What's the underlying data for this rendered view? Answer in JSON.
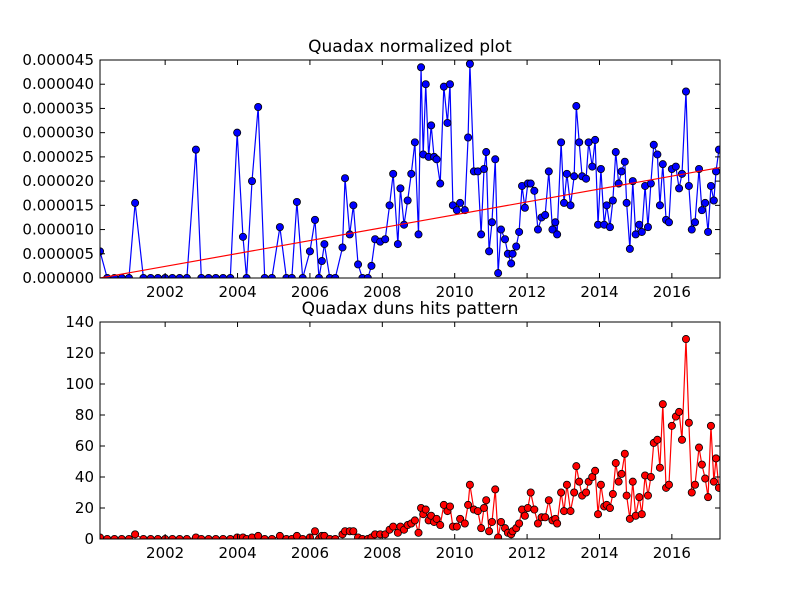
{
  "chart_data": [
    {
      "type": "line",
      "title": "Quadax normalized plot",
      "x": [
        2000.2,
        2000.4,
        2000.6,
        2000.8,
        2001.0,
        2001.17,
        2001.4,
        2001.6,
        2001.8,
        2002.0,
        2002.2,
        2002.4,
        2002.6,
        2002.85,
        2003.0,
        2003.2,
        2003.4,
        2003.6,
        2003.8,
        2003.99,
        2004.15,
        2004.25,
        2004.4,
        2004.57,
        2004.75,
        2004.95,
        2005.17,
        2005.35,
        2005.5,
        2005.64,
        2005.8,
        2006.0,
        2006.14,
        2006.25,
        2006.33,
        2006.4,
        2006.55,
        2006.7,
        2006.9,
        2006.97,
        2007.1,
        2007.2,
        2007.33,
        2007.45,
        2007.6,
        2007.7,
        2007.8,
        2007.94,
        2008.08,
        2008.2,
        2008.3,
        2008.43,
        2008.5,
        2008.6,
        2008.7,
        2008.8,
        2008.9,
        2009.0,
        2009.07,
        2009.13,
        2009.2,
        2009.28,
        2009.35,
        2009.43,
        2009.5,
        2009.6,
        2009.7,
        2009.8,
        2009.87,
        2009.95,
        2010.06,
        2010.15,
        2010.28,
        2010.37,
        2010.42,
        2010.53,
        2010.64,
        2010.73,
        2010.81,
        2010.87,
        2010.95,
        2011.03,
        2011.12,
        2011.2,
        2011.28,
        2011.39,
        2011.47,
        2011.56,
        2011.6,
        2011.7,
        2011.78,
        2011.86,
        2011.94,
        2012.02,
        2012.1,
        2012.2,
        2012.3,
        2012.4,
        2012.5,
        2012.6,
        2012.7,
        2012.78,
        2012.83,
        2012.94,
        2013.02,
        2013.1,
        2013.2,
        2013.3,
        2013.36,
        2013.44,
        2013.52,
        2013.63,
        2013.7,
        2013.8,
        2013.88,
        2013.96,
        2014.04,
        2014.13,
        2014.2,
        2014.29,
        2014.37,
        2014.45,
        2014.53,
        2014.61,
        2014.7,
        2014.75,
        2014.84,
        2014.92,
        2015.0,
        2015.1,
        2015.17,
        2015.26,
        2015.34,
        2015.42,
        2015.5,
        2015.6,
        2015.67,
        2015.75,
        2015.84,
        2015.92,
        2016.0,
        2016.11,
        2016.2,
        2016.28,
        2016.39,
        2016.47,
        2016.55,
        2016.64,
        2016.75,
        2016.83,
        2016.92,
        2017.0,
        2017.08,
        2017.16,
        2017.22,
        2017.3
      ],
      "series": [
        {
          "color": "#0000ff",
          "marker_edge": "#000000",
          "values": [
            5.5e-06,
            0,
            0,
            0,
            0,
            1.55e-05,
            0,
            0,
            0,
            0,
            0,
            0,
            0,
            2.65e-05,
            0,
            0,
            0,
            0,
            0,
            3e-05,
            8.5e-06,
            0,
            2e-05,
            3.53e-05,
            0,
            0,
            1.05e-05,
            0,
            0,
            1.57e-05,
            0,
            5.5e-06,
            1.2e-05,
            0,
            3.5e-06,
            7e-06,
            0,
            0,
            6.3e-06,
            2.06e-05,
            9e-06,
            1.5e-05,
            2.8e-06,
            0,
            0,
            2.5e-06,
            8e-06,
            7.5e-06,
            8e-06,
            1.5e-05,
            2.15e-05,
            7e-06,
            1.85e-05,
            1.1e-05,
            1.6e-05,
            2.15e-05,
            2.8e-05,
            9e-06,
            4.35e-05,
            2.55e-05,
            4e-05,
            2.5e-05,
            3.15e-05,
            2.5e-05,
            2.45e-05,
            1.95e-05,
            3.95e-05,
            3.2e-05,
            4e-05,
            1.5e-05,
            1.4e-05,
            1.55e-05,
            1.4e-05,
            2.9e-05,
            4.42e-05,
            2.2e-05,
            2.2e-05,
            9e-06,
            2.25e-05,
            2.6e-05,
            5.5e-06,
            1.15e-05,
            2.45e-05,
            1e-06,
            1e-05,
            8e-06,
            5e-06,
            3e-06,
            5e-06,
            6.5e-06,
            9.5e-06,
            1.9e-05,
            1.45e-05,
            1.95e-05,
            1.95e-05,
            1.8e-05,
            1e-05,
            1.25e-05,
            1.3e-05,
            2.2e-05,
            1e-05,
            1.15e-05,
            9e-06,
            2.8e-05,
            1.55e-05,
            2.15e-05,
            1.5e-05,
            2.1e-05,
            3.55e-05,
            2.8e-05,
            2.1e-05,
            2.05e-05,
            2.8e-05,
            2.3e-05,
            2.85e-05,
            1.1e-05,
            2.25e-05,
            1.1e-05,
            1.5e-05,
            1.05e-05,
            1.6e-05,
            2.6e-05,
            1.95e-05,
            2.2e-05,
            2.4e-05,
            1.55e-05,
            6e-06,
            2e-05,
            9e-06,
            1.1e-05,
            9.5e-06,
            1.9e-05,
            1.05e-05,
            1.95e-05,
            2.75e-05,
            2.55e-05,
            1.5e-05,
            2.35e-05,
            1.2e-05,
            1.15e-05,
            2.25e-05,
            2.3e-05,
            1.85e-05,
            2.15e-05,
            3.85e-05,
            1.9e-05,
            1e-05,
            1.15e-05,
            2.25e-05,
            1.4e-05,
            1.55e-05,
            9.5e-06,
            1.9e-05,
            1.6e-05,
            2.2e-05,
            2.65e-05
          ]
        }
      ],
      "trend": {
        "color": "#ff0000",
        "x": [
          2000.2,
          2017.33
        ],
        "values": [
          0,
          2.28e-05
        ]
      },
      "xlim": [
        2000.2,
        2017.33
      ],
      "xticks": [
        2002,
        2004,
        2006,
        2008,
        2010,
        2012,
        2014,
        2016
      ],
      "ylim": [
        0,
        4.5e-05
      ],
      "yticks": [
        {
          "value": 0,
          "label": "0.000000"
        },
        {
          "value": 5e-06,
          "label": "0.000005"
        },
        {
          "value": 1e-05,
          "label": "0.000010"
        },
        {
          "value": 1.5e-05,
          "label": "0.000015"
        },
        {
          "value": 2e-05,
          "label": "0.000020"
        },
        {
          "value": 2.5e-05,
          "label": "0.000025"
        },
        {
          "value": 3e-05,
          "label": "0.000030"
        },
        {
          "value": 3.5e-05,
          "label": "0.000035"
        },
        {
          "value": 4e-05,
          "label": "0.000040"
        },
        {
          "value": 4.5e-05,
          "label": "0.000045"
        }
      ],
      "grid": false
    },
    {
      "type": "line",
      "title": "Quadax duns hits pattern",
      "x": [
        2000.2,
        2000.4,
        2000.6,
        2000.8,
        2001.0,
        2001.17,
        2001.4,
        2001.6,
        2001.8,
        2002.0,
        2002.2,
        2002.4,
        2002.6,
        2002.85,
        2003.0,
        2003.2,
        2003.4,
        2003.6,
        2003.8,
        2003.99,
        2004.15,
        2004.25,
        2004.4,
        2004.57,
        2004.75,
        2004.95,
        2005.17,
        2005.35,
        2005.5,
        2005.64,
        2005.8,
        2006.0,
        2006.14,
        2006.25,
        2006.33,
        2006.4,
        2006.55,
        2006.7,
        2006.9,
        2006.97,
        2007.1,
        2007.2,
        2007.33,
        2007.45,
        2007.6,
        2007.7,
        2007.8,
        2007.94,
        2008.08,
        2008.2,
        2008.3,
        2008.43,
        2008.5,
        2008.6,
        2008.7,
        2008.8,
        2008.9,
        2009.0,
        2009.07,
        2009.13,
        2009.2,
        2009.28,
        2009.35,
        2009.43,
        2009.5,
        2009.6,
        2009.7,
        2009.8,
        2009.87,
        2009.95,
        2010.06,
        2010.15,
        2010.28,
        2010.37,
        2010.42,
        2010.53,
        2010.64,
        2010.73,
        2010.81,
        2010.87,
        2010.95,
        2011.03,
        2011.12,
        2011.2,
        2011.28,
        2011.39,
        2011.47,
        2011.56,
        2011.6,
        2011.7,
        2011.78,
        2011.86,
        2011.94,
        2012.02,
        2012.1,
        2012.2,
        2012.3,
        2012.4,
        2012.5,
        2012.6,
        2012.7,
        2012.78,
        2012.83,
        2012.94,
        2013.02,
        2013.1,
        2013.2,
        2013.3,
        2013.36,
        2013.44,
        2013.52,
        2013.63,
        2013.7,
        2013.8,
        2013.88,
        2013.96,
        2014.04,
        2014.13,
        2014.2,
        2014.29,
        2014.37,
        2014.45,
        2014.53,
        2014.61,
        2014.7,
        2014.75,
        2014.84,
        2014.92,
        2015.0,
        2015.1,
        2015.17,
        2015.26,
        2015.34,
        2015.42,
        2015.5,
        2015.6,
        2015.67,
        2015.75,
        2015.84,
        2015.92,
        2016.0,
        2016.11,
        2016.2,
        2016.28,
        2016.39,
        2016.47,
        2016.55,
        2016.64,
        2016.75,
        2016.83,
        2016.92,
        2017.0,
        2017.08,
        2017.16,
        2017.22,
        2017.3
      ],
      "series": [
        {
          "color": "#ff0000",
          "marker_edge": "#000000",
          "values": [
            1,
            0,
            0,
            0,
            0,
            3,
            0,
            0,
            0,
            0,
            0,
            0,
            0,
            1,
            0,
            0,
            0,
            0,
            0,
            1,
            1,
            0,
            1,
            2,
            0,
            0,
            2,
            0,
            0,
            2,
            0,
            1,
            5,
            0,
            2,
            2,
            0,
            0,
            3,
            5,
            5,
            5,
            1,
            0,
            0,
            1,
            3,
            3,
            3,
            6,
            8,
            4,
            8,
            6,
            9,
            10,
            12,
            4,
            20,
            16,
            19,
            12,
            15,
            11,
            13,
            9,
            22,
            18,
            21,
            8,
            8,
            13,
            10,
            22,
            35,
            19,
            18,
            7,
            20,
            25,
            5,
            11,
            32,
            1,
            11,
            7,
            4,
            3,
            5,
            7,
            10,
            19,
            15,
            20,
            30,
            19,
            10,
            14,
            14,
            25,
            12,
            13,
            10,
            30,
            18,
            35,
            18,
            30,
            47,
            37,
            28,
            30,
            37,
            40,
            44,
            16,
            35,
            21,
            22,
            20,
            29,
            49,
            37,
            42,
            55,
            28,
            13,
            37,
            15,
            27,
            16,
            41,
            28,
            40,
            62,
            64,
            46,
            87,
            33,
            35,
            73,
            79,
            82,
            64,
            129,
            75,
            30,
            35,
            59,
            48,
            39,
            27,
            73,
            37,
            52,
            33
          ]
        }
      ],
      "xlim": [
        2000.2,
        2017.33
      ],
      "xticks": [
        2002,
        2004,
        2006,
        2008,
        2010,
        2012,
        2014,
        2016
      ],
      "ylim": [
        0,
        140
      ],
      "yticks": [
        0,
        20,
        40,
        60,
        80,
        100,
        120,
        140
      ],
      "grid": false
    }
  ]
}
